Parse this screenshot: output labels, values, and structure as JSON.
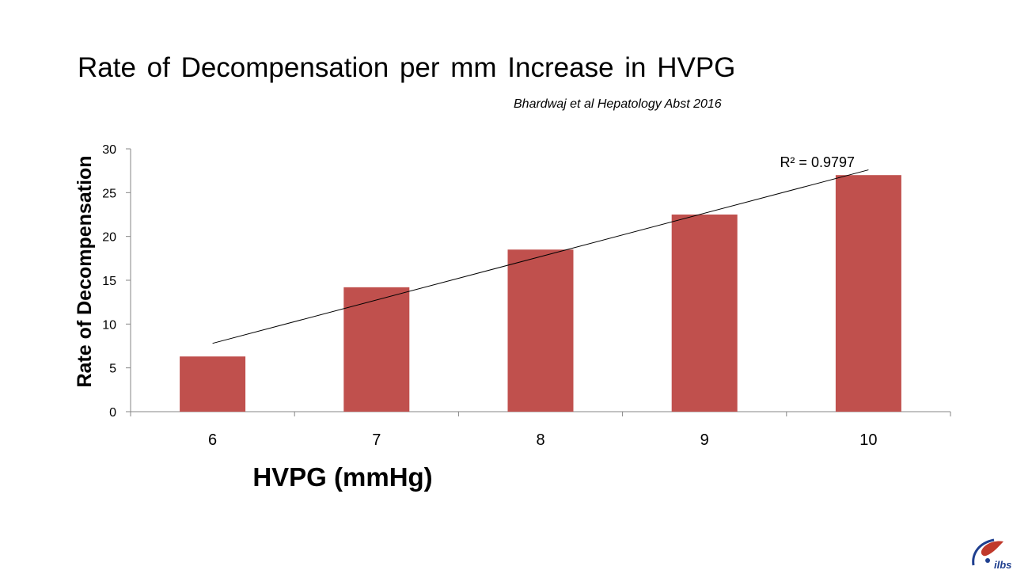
{
  "slide": {
    "title": "Rate of Decompensation per mm Increase in HVPG",
    "citation": "Bhardwaj et al Hepatology Abst 2016"
  },
  "colors": {
    "bar": "#C0504D",
    "axis": "#868686",
    "trendline": "#000000"
  },
  "chart_data": {
    "type": "bar",
    "categories": [
      "6",
      "7",
      "8",
      "9",
      "10"
    ],
    "values": [
      6.3,
      14.2,
      18.5,
      22.5,
      27.0
    ],
    "xlabel": "HVPG (mmHg)",
    "ylabel": "Rate of Decompensation",
    "ylim": [
      0,
      30
    ],
    "yticks": [
      0,
      5,
      10,
      15,
      20,
      25,
      30
    ],
    "grid": false,
    "legend": "none",
    "trendline": {
      "type": "linear",
      "start": 7.8,
      "end": 27.6,
      "label": "R² = 0.9797"
    }
  },
  "logo": {
    "text": "ilbs"
  }
}
